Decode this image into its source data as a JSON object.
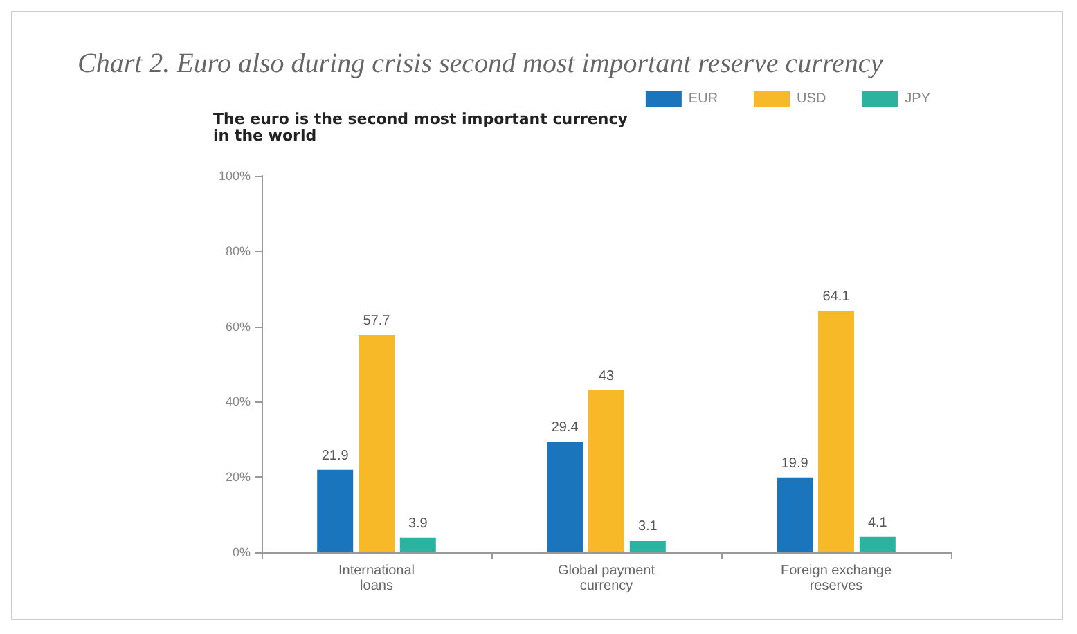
{
  "chart_data": {
    "type": "bar",
    "title": "Chart 2. Euro also during crisis second most important reserve currency",
    "subtitle": "The euro is the second most important currency\nin the world",
    "categories": [
      "International\nloans",
      "Global payment\ncurrency",
      "Foreign exchange\nreserves"
    ],
    "series": [
      {
        "name": "EUR",
        "color": "#1a75bc",
        "values": [
          21.9,
          29.4,
          19.9
        ]
      },
      {
        "name": "USD",
        "color": "#f7b928",
        "values": [
          57.7,
          43,
          64.1
        ]
      },
      {
        "name": "JPY",
        "color": "#2bb3a0",
        "values": [
          3.9,
          3.1,
          4.1
        ]
      }
    ],
    "ylim": [
      0,
      100
    ],
    "yticks": [
      {
        "value": 0,
        "label": "0%"
      },
      {
        "value": 20,
        "label": "20%"
      },
      {
        "value": 40,
        "label": "40%"
      },
      {
        "value": 60,
        "label": "60%"
      },
      {
        "value": 80,
        "label": "80%"
      },
      {
        "value": 100,
        "label": "100%"
      }
    ],
    "grid": false,
    "legend": "top right",
    "data_labels": true
  }
}
